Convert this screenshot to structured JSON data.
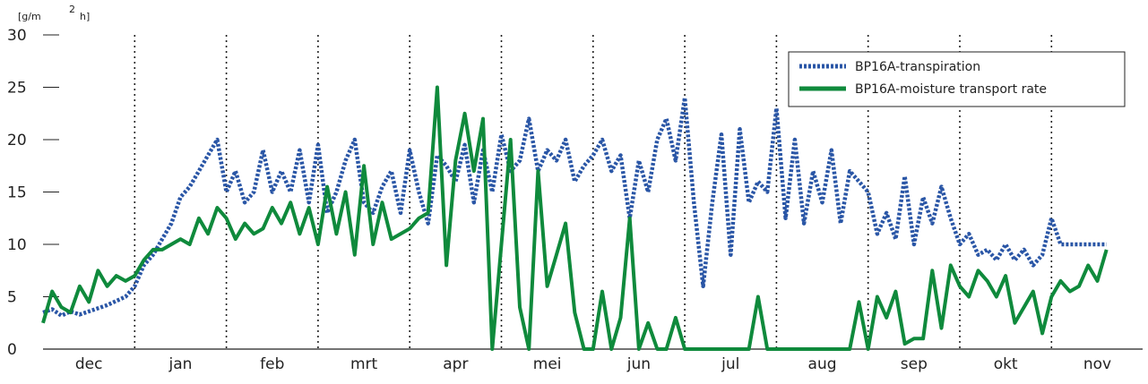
{
  "chart_data": {
    "type": "line",
    "ylabel_parts": [
      "[g/m",
      "2",
      "h]"
    ],
    "ylim": [
      0,
      30
    ],
    "yticks": [
      "0",
      "5",
      "10",
      "15",
      "20",
      "25",
      "30"
    ],
    "months": [
      "dec",
      "jan",
      "feb",
      "mrt",
      "apr",
      "mei",
      "jun",
      "jul",
      "aug",
      "sep",
      "okt",
      "nov"
    ],
    "grid": "vertical dotted at month boundaries",
    "legend_position": "top-right",
    "series": [
      {
        "name": "BP16A-transpiration",
        "color": "#2a56a6",
        "style": "dotted",
        "x": [
          0,
          0.1,
          0.2,
          0.3,
          0.4,
          0.5,
          0.6,
          0.7,
          0.8,
          0.9,
          1,
          1.1,
          1.2,
          1.3,
          1.4,
          1.5,
          1.6,
          1.7,
          1.8,
          1.9,
          2,
          2.1,
          2.2,
          2.3,
          2.4,
          2.5,
          2.6,
          2.7,
          2.8,
          2.9,
          3,
          3.1,
          3.2,
          3.3,
          3.4,
          3.5,
          3.6,
          3.7,
          3.8,
          3.9,
          4,
          4.1,
          4.2,
          4.3,
          4.4,
          4.5,
          4.6,
          4.7,
          4.8,
          4.9,
          5,
          5.1,
          5.2,
          5.3,
          5.4,
          5.5,
          5.6,
          5.7,
          5.8,
          5.9,
          6,
          6.1,
          6.2,
          6.3,
          6.4,
          6.5,
          6.6,
          6.7,
          6.8,
          6.9,
          7,
          7.1,
          7.2,
          7.3,
          7.4,
          7.5,
          7.6,
          7.7,
          7.8,
          7.9,
          8,
          8.1,
          8.2,
          8.3,
          8.4,
          8.5,
          8.6,
          8.7,
          8.8,
          8.9,
          9,
          9.1,
          9.2,
          9.3,
          9.4,
          9.5,
          9.6,
          9.7,
          9.8,
          9.9,
          10,
          10.1,
          10.2,
          10.3,
          10.4,
          10.5,
          10.6,
          10.7,
          10.8,
          10.9,
          11,
          11.1,
          11.2,
          11.3,
          11.4,
          11.5,
          11.6
        ],
        "values": [
          3.5,
          3.8,
          3.2,
          3.6,
          3.3,
          3.6,
          3.9,
          4.2,
          4.6,
          5.0,
          6.0,
          8.0,
          9.0,
          10.5,
          12.0,
          14.5,
          15.5,
          17.0,
          18.5,
          20.0,
          15.0,
          17.0,
          14.0,
          15.0,
          19.0,
          15.0,
          17.0,
          15.0,
          19.0,
          14.0,
          19.5,
          13.0,
          15.0,
          18.0,
          20.0,
          14.0,
          13.0,
          15.5,
          17.0,
          13.0,
          19.0,
          15.0,
          12.0,
          18.5,
          17.5,
          16.0,
          19.5,
          14.0,
          19.0,
          15.0,
          20.5,
          17.0,
          18.0,
          22.0,
          17.0,
          19.0,
          18.0,
          20.0,
          16.0,
          17.5,
          18.5,
          20.0,
          17.0,
          18.5,
          12.5,
          18.0,
          15.0,
          20.0,
          22.0,
          18.0,
          24.0,
          14.0,
          6.0,
          14.0,
          20.5,
          9.0,
          21.0,
          14.0,
          16.0,
          15.0,
          23.0,
          12.5,
          20.0,
          12.0,
          17.0,
          14.0,
          19.0,
          12.0,
          17.0,
          16.0,
          15.0,
          11.0,
          13.0,
          10.5,
          16.5,
          10.0,
          14.5,
          12.0,
          15.5,
          12.5,
          10.0,
          11.0,
          9.0,
          9.5,
          8.5,
          10.0,
          8.5,
          9.5,
          8.0,
          9.0,
          12.5,
          10.0,
          10.0,
          10.0,
          10.0,
          10.0,
          10.0
        ]
      },
      {
        "name": "BP16A-moisture transport rate",
        "color": "#0f8a3c",
        "style": "solid",
        "x": [
          0,
          0.1,
          0.2,
          0.3,
          0.4,
          0.5,
          0.6,
          0.7,
          0.8,
          0.9,
          1,
          1.1,
          1.2,
          1.3,
          1.4,
          1.5,
          1.6,
          1.7,
          1.8,
          1.9,
          2,
          2.1,
          2.2,
          2.3,
          2.4,
          2.5,
          2.6,
          2.7,
          2.8,
          2.9,
          3,
          3.1,
          3.2,
          3.3,
          3.4,
          3.5,
          3.6,
          3.7,
          3.8,
          3.9,
          4,
          4.1,
          4.2,
          4.3,
          4.4,
          4.5,
          4.6,
          4.7,
          4.8,
          4.9,
          5,
          5.1,
          5.2,
          5.3,
          5.4,
          5.5,
          5.6,
          5.7,
          5.8,
          5.9,
          6,
          6.1,
          6.2,
          6.3,
          6.4,
          6.5,
          6.6,
          6.7,
          6.8,
          6.9,
          7,
          7.1,
          7.2,
          7.3,
          7.4,
          7.5,
          7.6,
          7.7,
          7.8,
          7.9,
          8,
          8.1,
          8.2,
          8.3,
          8.4,
          8.5,
          8.6,
          8.7,
          8.8,
          8.9,
          9,
          9.1,
          9.2,
          9.3,
          9.4,
          9.5,
          9.6,
          9.7,
          9.8,
          9.9,
          10,
          10.1,
          10.2,
          10.3,
          10.4,
          10.5,
          10.6,
          10.7,
          10.8,
          10.9,
          11,
          11.1,
          11.2,
          11.3,
          11.4,
          11.5,
          11.6
        ],
        "values": [
          2.5,
          5.5,
          4.0,
          3.5,
          6.0,
          4.5,
          7.5,
          6.0,
          7.0,
          6.5,
          7.0,
          8.5,
          9.5,
          9.5,
          10.0,
          10.5,
          10.0,
          12.5,
          11.0,
          13.5,
          12.5,
          10.5,
          12.0,
          11.0,
          11.5,
          13.5,
          12.0,
          14.0,
          11.0,
          13.5,
          10.0,
          15.5,
          11.0,
          15.0,
          9.0,
          17.5,
          10.0,
          14.0,
          10.5,
          11.0,
          11.5,
          12.5,
          13.0,
          25.0,
          8.0,
          18.0,
          22.5,
          17.0,
          22.0,
          0.0,
          10.0,
          20.0,
          4.0,
          0.0,
          17.0,
          6.0,
          9.0,
          12.0,
          3.5,
          0.0,
          0.0,
          5.5,
          0.0,
          3.0,
          12.5,
          0.0,
          2.5,
          0.0,
          0.0,
          3.0,
          0.0,
          0.0,
          0.0,
          0.0,
          0.0,
          0.0,
          0.0,
          0.0,
          5.0,
          0.0,
          0.0,
          0.0,
          0.0,
          0.0,
          0.0,
          0.0,
          0.0,
          0.0,
          0.0,
          4.5,
          0.0,
          5.0,
          3.0,
          5.5,
          0.5,
          1.0,
          1.0,
          7.5,
          2.0,
          8.0,
          6.0,
          5.0,
          7.5,
          6.5,
          5.0,
          7.0,
          2.5,
          4.0,
          5.5,
          1.5,
          5.0,
          6.5,
          5.5,
          6.0,
          8.0,
          6.5,
          9.5
        ]
      }
    ]
  }
}
